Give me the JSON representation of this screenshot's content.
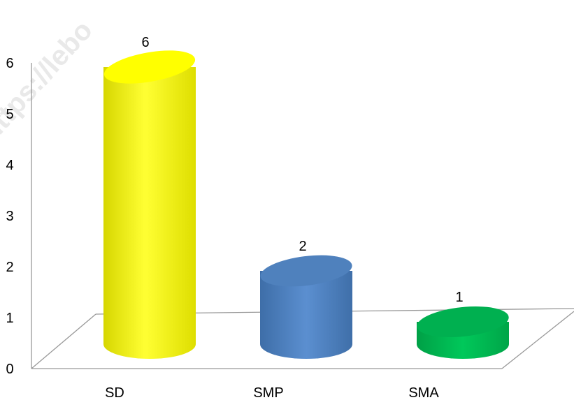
{
  "chart_data": {
    "type": "bar",
    "style": "3d-cylinder",
    "categories": [
      "SD",
      "SMP",
      "SMA"
    ],
    "values": [
      6,
      2,
      1
    ],
    "data_labels": [
      "6",
      "2",
      "1"
    ],
    "bar_colors": [
      "#ffff00",
      "#4f81bd",
      "#00b050"
    ],
    "title": "",
    "xlabel": "",
    "ylabel": "",
    "ylim": [
      0,
      6
    ],
    "yticks": [
      "0",
      "1",
      "2",
      "3",
      "4",
      "5",
      "6"
    ],
    "grid": false,
    "legend": "none"
  },
  "watermark": "https://lebo"
}
